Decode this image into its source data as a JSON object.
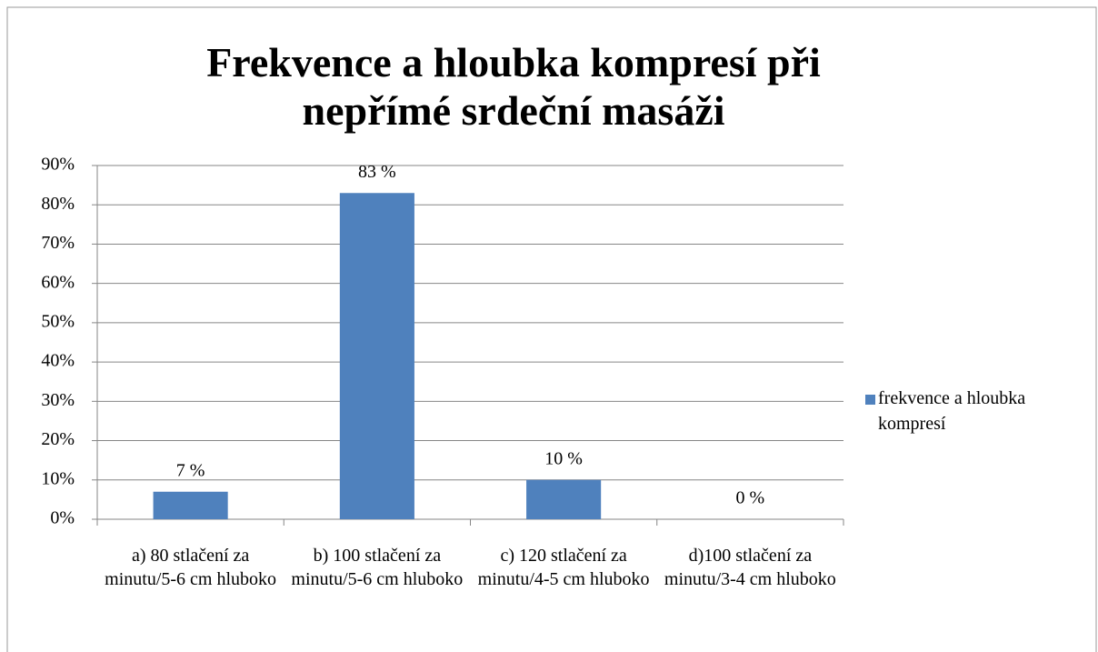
{
  "chart_data": {
    "type": "bar",
    "title": "Frekvence a hloubka kompresí při nepřímé srdeční masáži",
    "categories": [
      "a) 80 stlačení za minutu/5-6 cm hluboko",
      "b) 100 stlačení za minutu/5-6 cm hluboko",
      "c) 120 stlačení za minutu/4-5 cm hluboko",
      "d)100 stlačení za minutu/3-4 cm hluboko"
    ],
    "series": [
      {
        "name": "frekvence a hloubka kompresí",
        "color": "#4f81bd",
        "values": [
          7,
          83,
          10,
          0
        ],
        "value_labels": [
          "7 %",
          "83 %",
          "10 %",
          "0 %"
        ]
      }
    ],
    "ylim": [
      0,
      90
    ],
    "yticks": [
      {
        "value": 0,
        "label": "0%"
      },
      {
        "value": 10,
        "label": "10%"
      },
      {
        "value": 20,
        "label": "20%"
      },
      {
        "value": 30,
        "label": "30%"
      },
      {
        "value": 40,
        "label": "40%"
      },
      {
        "value": 50,
        "label": "50%"
      },
      {
        "value": 60,
        "label": "60%"
      },
      {
        "value": 70,
        "label": "70%"
      },
      {
        "value": 80,
        "label": "80%"
      },
      {
        "value": 90,
        "label": "90%"
      }
    ],
    "grid": true,
    "legend": "right"
  }
}
